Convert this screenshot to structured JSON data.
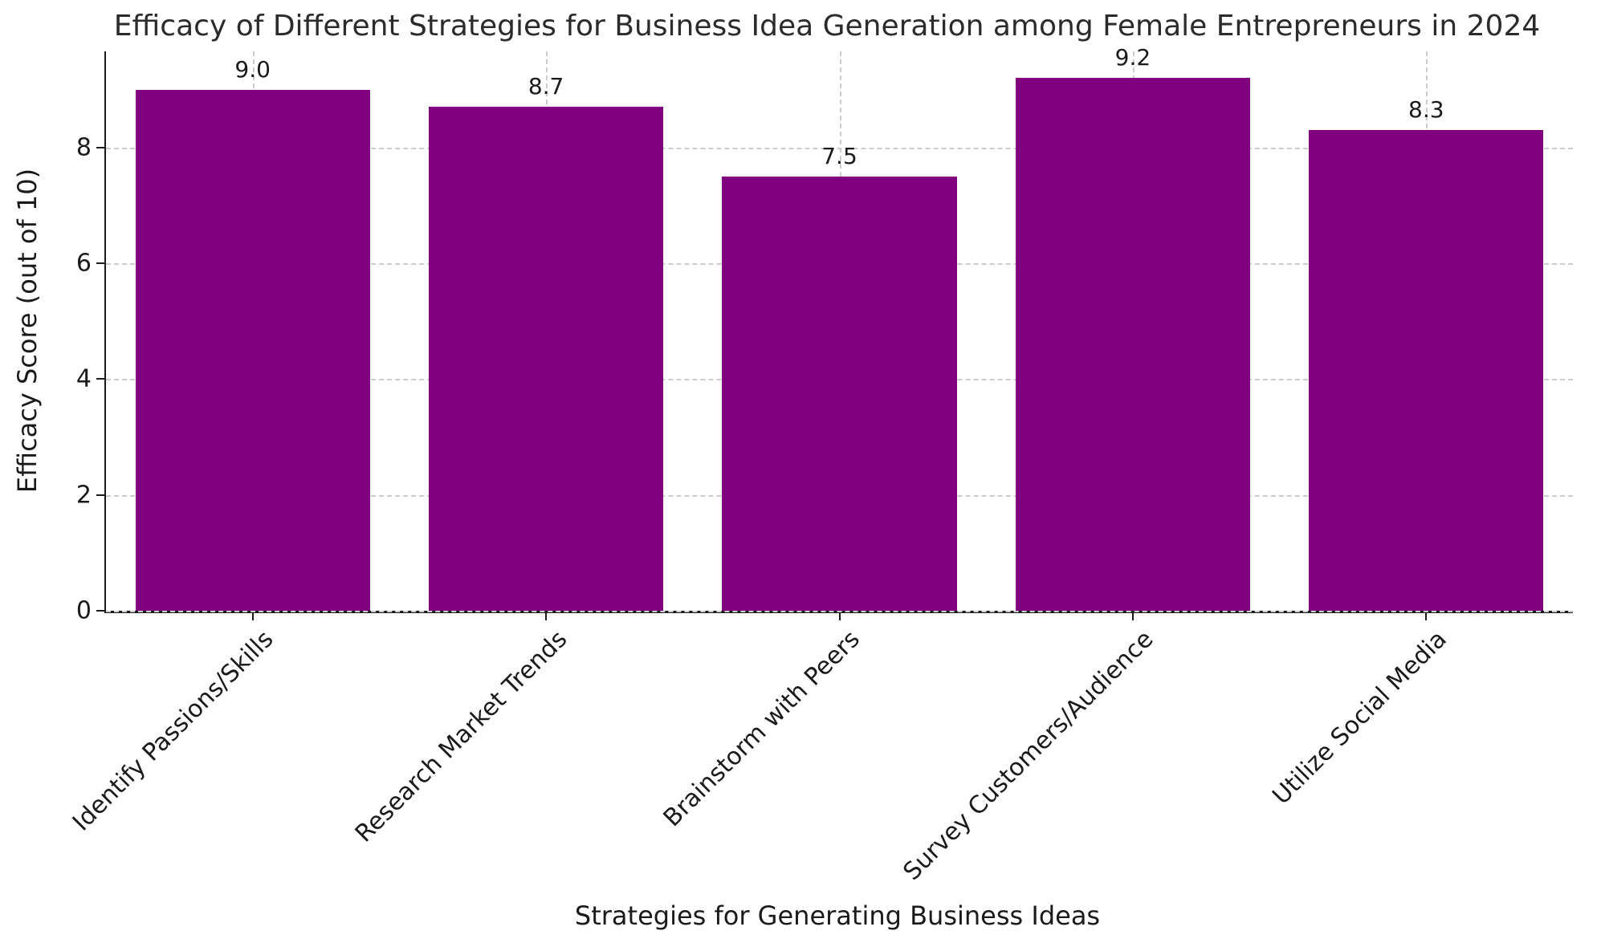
{
  "chart_data": {
    "type": "bar",
    "title": "Efficacy of Different Strategies for Business Idea Generation among Female Entrepreneurs in 2024",
    "xlabel": "Strategies for Generating Business Ideas",
    "ylabel": "Efficacy Score (out of 10)",
    "categories": [
      "Identify Passions/Skills",
      "Research Market Trends",
      "Brainstorm with Peers",
      "Survey Customers/Audience",
      "Utilize Social Media"
    ],
    "values": [
      9.0,
      8.7,
      7.5,
      9.2,
      8.3
    ],
    "value_labels": [
      "9.0",
      "8.7",
      "7.5",
      "9.2",
      "8.3"
    ],
    "yticks": [
      0,
      2,
      4,
      6,
      8
    ],
    "ylim": [
      0,
      9.66
    ],
    "bar_color": "#800080",
    "grid_color": "#cccccc",
    "grid_style": "dashed",
    "legend": "none"
  }
}
